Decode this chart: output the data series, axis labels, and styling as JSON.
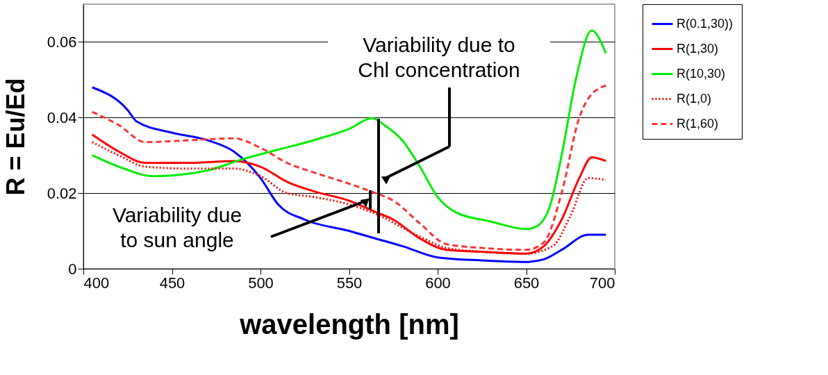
{
  "chart_data": {
    "type": "line",
    "xlabel": "wavelength [nm]",
    "ylabel": "R = Eu/Ed",
    "xlim": [
      400,
      700
    ],
    "xticks": [
      400,
      450,
      500,
      550,
      600,
      650,
      700
    ],
    "ylim": [
      0,
      0.07
    ],
    "yticks": [
      {
        "value": 0,
        "label": "0"
      },
      0.02,
      0.04,
      0.06
    ],
    "grid": "y",
    "legend": "right",
    "marker": "none",
    "annotations": [
      "Variability due to\nChl concentration",
      "Variability due\nto sun angle"
    ],
    "series": [
      {
        "name": "R(0.1,30))",
        "color": "#0000ff",
        "line_style": "solid",
        "x": [
          405,
          425,
          430,
          450,
          470,
          485,
          500,
          510,
          525,
          550,
          565,
          580,
          600,
          625,
          650,
          660,
          670,
          685,
          695
        ],
        "values": [
          0.048,
          0.042,
          0.039,
          0.036,
          0.034,
          0.031,
          0.024,
          0.017,
          0.013,
          0.01,
          0.008,
          0.006,
          0.003,
          0.0022,
          0.0018,
          0.0025,
          0.005,
          0.009,
          0.009
        ]
      },
      {
        "name": "R(1,30)",
        "color": "#ff0000",
        "line_style": "solid",
        "x": [
          405,
          420,
          435,
          460,
          485,
          500,
          515,
          530,
          550,
          565,
          575,
          590,
          605,
          625,
          650,
          660,
          670,
          680,
          687,
          695
        ],
        "values": [
          0.0355,
          0.031,
          0.028,
          0.028,
          0.0285,
          0.027,
          0.023,
          0.0205,
          0.018,
          0.015,
          0.013,
          0.008,
          0.005,
          0.0045,
          0.004,
          0.006,
          0.013,
          0.024,
          0.0295,
          0.0285
        ]
      },
      {
        "name": "R(10,30)",
        "color": "#00ee00",
        "line_style": "solid",
        "x": [
          405,
          420,
          440,
          470,
          490,
          510,
          530,
          550,
          563,
          570,
          580,
          590,
          600,
          610,
          630,
          650,
          655,
          663,
          670,
          678,
          687,
          695
        ],
        "values": [
          0.03,
          0.027,
          0.0245,
          0.026,
          0.029,
          0.0315,
          0.034,
          0.037,
          0.0398,
          0.038,
          0.034,
          0.027,
          0.019,
          0.015,
          0.0125,
          0.0105,
          0.011,
          0.016,
          0.03,
          0.05,
          0.063,
          0.057
        ]
      },
      {
        "name": "R(1,0)",
        "color": "#ff0000",
        "line_style": "dotted",
        "x": [
          405,
          420,
          435,
          460,
          485,
          500,
          515,
          530,
          550,
          565,
          590,
          605,
          625,
          650,
          665,
          675,
          685,
          695
        ],
        "values": [
          0.0335,
          0.03,
          0.027,
          0.0265,
          0.0265,
          0.0245,
          0.02,
          0.019,
          0.017,
          0.0145,
          0.0085,
          0.0055,
          0.0045,
          0.004,
          0.006,
          0.014,
          0.024,
          0.0235
        ]
      },
      {
        "name": "R(1,60)",
        "color": "#ff3333",
        "line_style": "dashed",
        "x": [
          405,
          420,
          435,
          460,
          485,
          500,
          515,
          530,
          550,
          565,
          575,
          590,
          605,
          625,
          650,
          660,
          670,
          680,
          685,
          695
        ],
        "values": [
          0.0415,
          0.038,
          0.0335,
          0.034,
          0.0345,
          0.032,
          0.028,
          0.0255,
          0.0225,
          0.02,
          0.018,
          0.012,
          0.0065,
          0.0055,
          0.005,
          0.007,
          0.02,
          0.04,
          0.045,
          0.0485
        ]
      }
    ]
  }
}
